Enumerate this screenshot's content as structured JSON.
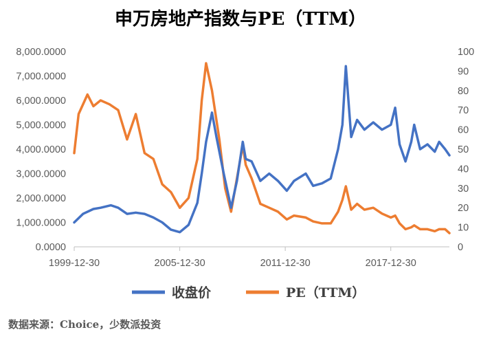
{
  "chart_data": {
    "type": "line",
    "title": "申万房地产指数与PE（TTM）",
    "source": "数据来源：Choice，少数派投资",
    "x_ticks": [
      "1999-12-30",
      "2005-12-30",
      "2011-12-30",
      "2017-12-30"
    ],
    "x_range": [
      "1999-12-30",
      "2021-04-30"
    ],
    "y_left_ticks": [
      "0.0000",
      "1,000.0000",
      "2,000.0000",
      "3,000.0000",
      "4,000.0000",
      "5,000.0000",
      "6,000.0000",
      "7,000.0000",
      "8,000.0000"
    ],
    "y_left_range": [
      0,
      8000
    ],
    "y_right_ticks": [
      "0",
      "10",
      "20",
      "30",
      "40",
      "50",
      "60",
      "70",
      "80",
      "90",
      "100"
    ],
    "y_right_range": [
      0,
      100
    ],
    "grid": false,
    "legend_position": "bottom",
    "series": [
      {
        "name": "收盘价",
        "axis": "left",
        "color": "#4472C4",
        "points": [
          [
            "1999-12-30",
            1000
          ],
          [
            "2000-06-30",
            1350
          ],
          [
            "2001-01-31",
            1550
          ],
          [
            "2001-06-30",
            1600
          ],
          [
            "2002-01-31",
            1700
          ],
          [
            "2002-06-30",
            1600
          ],
          [
            "2002-12-31",
            1350
          ],
          [
            "2003-06-30",
            1400
          ],
          [
            "2003-12-31",
            1350
          ],
          [
            "2004-06-30",
            1200
          ],
          [
            "2004-12-31",
            1000
          ],
          [
            "2005-06-30",
            700
          ],
          [
            "2005-12-31",
            600
          ],
          [
            "2006-06-30",
            900
          ],
          [
            "2006-12-31",
            1800
          ],
          [
            "2007-03-31",
            3000
          ],
          [
            "2007-06-30",
            4300
          ],
          [
            "2007-10-31",
            5500
          ],
          [
            "2008-01-31",
            4500
          ],
          [
            "2008-06-30",
            3000
          ],
          [
            "2008-11-30",
            1600
          ],
          [
            "2009-03-31",
            2700
          ],
          [
            "2009-07-31",
            4300
          ],
          [
            "2009-09-30",
            3600
          ],
          [
            "2010-01-31",
            3500
          ],
          [
            "2010-07-31",
            2700
          ],
          [
            "2011-01-31",
            3000
          ],
          [
            "2011-07-31",
            2700
          ],
          [
            "2012-01-31",
            2300
          ],
          [
            "2012-06-30",
            2700
          ],
          [
            "2013-02-28",
            3000
          ],
          [
            "2013-07-31",
            2500
          ],
          [
            "2014-01-31",
            2600
          ],
          [
            "2014-07-31",
            2800
          ],
          [
            "2014-12-31",
            4000
          ],
          [
            "2015-03-31",
            5000
          ],
          [
            "2015-06-10",
            7400
          ],
          [
            "2015-09-30",
            4500
          ],
          [
            "2016-01-31",
            5200
          ],
          [
            "2016-06-30",
            4800
          ],
          [
            "2016-12-31",
            5100
          ],
          [
            "2017-06-30",
            4800
          ],
          [
            "2017-12-31",
            5000
          ],
          [
            "2018-03-31",
            5700
          ],
          [
            "2018-06-30",
            4200
          ],
          [
            "2018-10-31",
            3500
          ],
          [
            "2019-02-28",
            4300
          ],
          [
            "2019-04-30",
            5000
          ],
          [
            "2019-08-31",
            4000
          ],
          [
            "2020-01-31",
            4200
          ],
          [
            "2020-06-30",
            3900
          ],
          [
            "2020-09-30",
            4300
          ],
          [
            "2021-01-31",
            4000
          ],
          [
            "2021-04-30",
            3750
          ]
        ]
      },
      {
        "name": "PE（TTM）",
        "axis": "right",
        "color": "#ED7D31",
        "points": [
          [
            "1999-12-30",
            48
          ],
          [
            "2000-03-31",
            68
          ],
          [
            "2000-09-30",
            78
          ],
          [
            "2001-01-31",
            72
          ],
          [
            "2001-06-30",
            75
          ],
          [
            "2001-12-31",
            73
          ],
          [
            "2002-06-30",
            70
          ],
          [
            "2002-12-31",
            55
          ],
          [
            "2003-06-30",
            68
          ],
          [
            "2003-12-31",
            48
          ],
          [
            "2004-06-30",
            45
          ],
          [
            "2004-12-31",
            32
          ],
          [
            "2005-06-30",
            28
          ],
          [
            "2005-12-31",
            20
          ],
          [
            "2006-06-30",
            25
          ],
          [
            "2006-12-31",
            45
          ],
          [
            "2007-03-31",
            75
          ],
          [
            "2007-06-30",
            94
          ],
          [
            "2007-10-31",
            80
          ],
          [
            "2008-03-31",
            55
          ],
          [
            "2008-07-31",
            30
          ],
          [
            "2008-11-30",
            18
          ],
          [
            "2009-03-31",
            35
          ],
          [
            "2009-07-31",
            52
          ],
          [
            "2009-09-30",
            42
          ],
          [
            "2010-01-31",
            35
          ],
          [
            "2010-07-31",
            22
          ],
          [
            "2011-01-31",
            20
          ],
          [
            "2011-07-31",
            18
          ],
          [
            "2012-01-31",
            14
          ],
          [
            "2012-06-30",
            16
          ],
          [
            "2013-02-28",
            15
          ],
          [
            "2013-07-31",
            13
          ],
          [
            "2014-01-31",
            12
          ],
          [
            "2014-07-31",
            12
          ],
          [
            "2014-12-31",
            18
          ],
          [
            "2015-03-31",
            24
          ],
          [
            "2015-06-10",
            31
          ],
          [
            "2015-09-30",
            19
          ],
          [
            "2016-01-31",
            22
          ],
          [
            "2016-06-30",
            19
          ],
          [
            "2016-12-31",
            20
          ],
          [
            "2017-06-30",
            17
          ],
          [
            "2017-12-31",
            15
          ],
          [
            "2018-03-31",
            16
          ],
          [
            "2018-06-30",
            12
          ],
          [
            "2018-10-31",
            9
          ],
          [
            "2019-02-28",
            10
          ],
          [
            "2019-04-30",
            11
          ],
          [
            "2019-08-31",
            9
          ],
          [
            "2020-01-31",
            9
          ],
          [
            "2020-06-30",
            8
          ],
          [
            "2020-09-30",
            9
          ],
          [
            "2021-01-31",
            9
          ],
          [
            "2021-04-30",
            7
          ]
        ]
      }
    ]
  }
}
